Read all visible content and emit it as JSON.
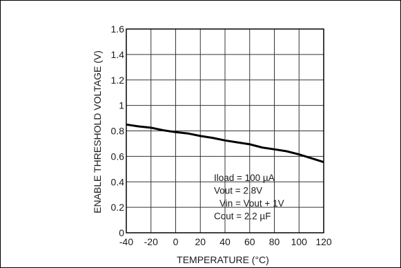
{
  "chart_data": {
    "type": "line",
    "title": "",
    "xlabel": "TEMPERATURE (°C)",
    "ylabel": "ENABLE THRESHOLD VOLTAGE (V)",
    "xlim": [
      -40,
      120
    ],
    "ylim": [
      0,
      1.6
    ],
    "grid": true,
    "x_ticks": [
      "-40",
      "-20",
      "0",
      "20",
      "40",
      "60",
      "80",
      "100",
      "120"
    ],
    "y_ticks": [
      "0",
      "0.2",
      "0.4",
      "0.6",
      "0.8",
      "1",
      "1.2",
      "1.4",
      "1.6"
    ],
    "series": [
      {
        "x": [
          -40,
          -30,
          -20,
          -10,
          0,
          10,
          20,
          30,
          40,
          50,
          60,
          70,
          80,
          90,
          100,
          110,
          120
        ],
        "y": [
          0.85,
          0.835,
          0.825,
          0.805,
          0.79,
          0.78,
          0.76,
          0.745,
          0.725,
          0.71,
          0.695,
          0.67,
          0.655,
          0.64,
          0.615,
          0.585,
          0.555
        ]
      }
    ],
    "annotations": [
      "Iload = 100 µA",
      "Vout = 2.8V",
      "Vin = Vout + 1V",
      "Cout = 2.2 µF"
    ]
  }
}
